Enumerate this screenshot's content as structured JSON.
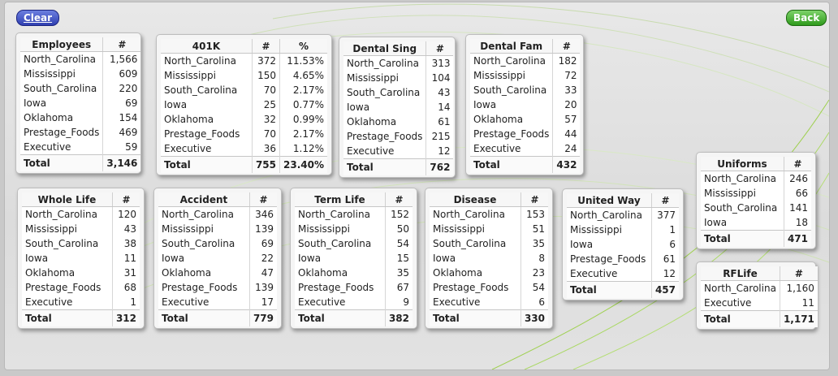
{
  "controls": {
    "clear_label": "Clear",
    "back_label": "Back"
  },
  "tables": [
    {
      "id": "employees",
      "title": "Employees",
      "columns": [
        "#"
      ],
      "rows": [
        [
          "North_Carolina",
          "1,566"
        ],
        [
          "Mississippi",
          "609"
        ],
        [
          "South_Carolina",
          "220"
        ],
        [
          "Iowa",
          "69"
        ],
        [
          "Oklahoma",
          "154"
        ],
        [
          "Prestage_Foods",
          "469"
        ],
        [
          "Executive",
          "59"
        ]
      ],
      "total": [
        "Total",
        "3,146"
      ]
    },
    {
      "id": "k401",
      "title": "401K",
      "columns": [
        "#",
        "%"
      ],
      "rows": [
        [
          "North_Carolina",
          "372",
          "11.53%"
        ],
        [
          "Mississippi",
          "150",
          "4.65%"
        ],
        [
          "South_Carolina",
          "70",
          "2.17%"
        ],
        [
          "Iowa",
          "25",
          "0.77%"
        ],
        [
          "Oklahoma",
          "32",
          "0.99%"
        ],
        [
          "Prestage_Foods",
          "70",
          "2.17%"
        ],
        [
          "Executive",
          "36",
          "1.12%"
        ]
      ],
      "total": [
        "Total",
        "755",
        "23.40%"
      ]
    },
    {
      "id": "dental-sing",
      "title": "Dental Sing",
      "columns": [
        "#"
      ],
      "rows": [
        [
          "North_Carolina",
          "313"
        ],
        [
          "Mississippi",
          "104"
        ],
        [
          "South_Carolina",
          "43"
        ],
        [
          "Iowa",
          "14"
        ],
        [
          "Oklahoma",
          "61"
        ],
        [
          "Prestage_Foods",
          "215"
        ],
        [
          "Executive",
          "12"
        ]
      ],
      "total": [
        "Total",
        "762"
      ]
    },
    {
      "id": "dental-fam",
      "title": "Dental Fam",
      "columns": [
        "#"
      ],
      "rows": [
        [
          "North_Carolina",
          "182"
        ],
        [
          "Mississippi",
          "72"
        ],
        [
          "South_Carolina",
          "33"
        ],
        [
          "Iowa",
          "20"
        ],
        [
          "Oklahoma",
          "57"
        ],
        [
          "Prestage_Foods",
          "44"
        ],
        [
          "Executive",
          "24"
        ]
      ],
      "total": [
        "Total",
        "432"
      ]
    },
    {
      "id": "uniforms",
      "title": "Uniforms",
      "columns": [
        "#"
      ],
      "rows": [
        [
          "North_Carolina",
          "246"
        ],
        [
          "Mississippi",
          "66"
        ],
        [
          "South_Carolina",
          "141"
        ],
        [
          "Iowa",
          "18"
        ]
      ],
      "total": [
        "Total",
        "471"
      ]
    },
    {
      "id": "whole-life",
      "title": "Whole Life",
      "columns": [
        "#"
      ],
      "rows": [
        [
          "North_Carolina",
          "120"
        ],
        [
          "Mississippi",
          "43"
        ],
        [
          "South_Carolina",
          "38"
        ],
        [
          "Iowa",
          "11"
        ],
        [
          "Oklahoma",
          "31"
        ],
        [
          "Prestage_Foods",
          "68"
        ],
        [
          "Executive",
          "1"
        ]
      ],
      "total": [
        "Total",
        "312"
      ]
    },
    {
      "id": "accident",
      "title": "Accident",
      "columns": [
        "#"
      ],
      "rows": [
        [
          "North_Carolina",
          "346"
        ],
        [
          "Mississippi",
          "139"
        ],
        [
          "South_Carolina",
          "69"
        ],
        [
          "Iowa",
          "22"
        ],
        [
          "Oklahoma",
          "47"
        ],
        [
          "Prestage_Foods",
          "139"
        ],
        [
          "Executive",
          "17"
        ]
      ],
      "total": [
        "Total",
        "779"
      ]
    },
    {
      "id": "term-life",
      "title": "Term Life",
      "columns": [
        "#"
      ],
      "rows": [
        [
          "North_Carolina",
          "152"
        ],
        [
          "Mississippi",
          "50"
        ],
        [
          "South_Carolina",
          "54"
        ],
        [
          "Iowa",
          "15"
        ],
        [
          "Oklahoma",
          "35"
        ],
        [
          "Prestage_Foods",
          "67"
        ],
        [
          "Executive",
          "9"
        ]
      ],
      "total": [
        "Total",
        "382"
      ]
    },
    {
      "id": "disease",
      "title": "Disease",
      "columns": [
        "#"
      ],
      "rows": [
        [
          "North_Carolina",
          "153"
        ],
        [
          "Mississippi",
          "51"
        ],
        [
          "South_Carolina",
          "35"
        ],
        [
          "Iowa",
          "8"
        ],
        [
          "Oklahoma",
          "23"
        ],
        [
          "Prestage_Foods",
          "54"
        ],
        [
          "Executive",
          "6"
        ]
      ],
      "total": [
        "Total",
        "330"
      ]
    },
    {
      "id": "united-way",
      "title": "United Way",
      "columns": [
        "#"
      ],
      "rows": [
        [
          "North_Carolina",
          "377"
        ],
        [
          "Mississippi",
          "1"
        ],
        [
          "Iowa",
          "6"
        ],
        [
          "Prestage_Foods",
          "61"
        ],
        [
          "Executive",
          "12"
        ]
      ],
      "total": [
        "Total",
        "457"
      ]
    },
    {
      "id": "rflife",
      "title": "RFLife",
      "columns": [
        "#"
      ],
      "rows": [
        [
          "North_Carolina",
          "1,160"
        ],
        [
          "Executive",
          "11"
        ]
      ],
      "total": [
        "Total",
        "1,171"
      ]
    }
  ]
}
